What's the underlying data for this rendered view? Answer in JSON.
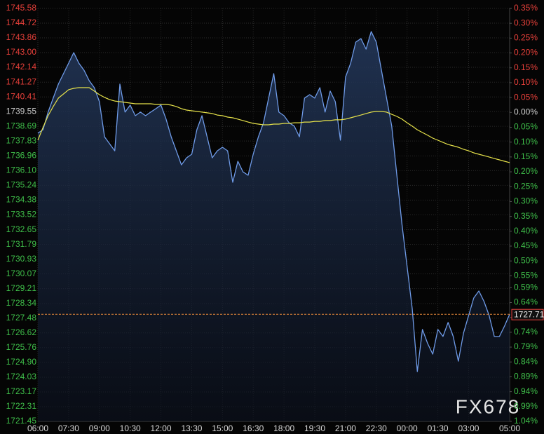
{
  "chart_data": {
    "type": "line",
    "watermark": "FX678",
    "categories": [
      "06:00",
      null,
      null,
      null,
      null,
      null,
      "07:30",
      null,
      null,
      null,
      null,
      null,
      "09:00",
      null,
      null,
      null,
      null,
      null,
      "10:30",
      null,
      null,
      null,
      null,
      null,
      "12:00",
      null,
      null,
      null,
      null,
      null,
      "13:30",
      null,
      null,
      null,
      null,
      null,
      "15:00",
      null,
      null,
      null,
      null,
      null,
      "16:30",
      null,
      null,
      null,
      null,
      null,
      "18:00",
      null,
      null,
      null,
      null,
      null,
      "19:30",
      null,
      null,
      null,
      null,
      null,
      "21:00",
      null,
      null,
      null,
      null,
      null,
      "22:30",
      null,
      null,
      null,
      null,
      null,
      "00:00",
      null,
      null,
      null,
      null,
      null,
      "01:30",
      null,
      null,
      null,
      null,
      null,
      "03:00",
      null,
      null,
      null,
      null,
      null,
      null,
      null,
      "05:00"
    ],
    "series": [
      {
        "color": "#6f9be8",
        "area": true,
        "values": [
          1738.29,
          1738.49,
          1739.52,
          1740.34,
          1741.16,
          1741.77,
          1742.38,
          1743.0,
          1742.38,
          1741.97,
          1741.36,
          1740.95,
          1740.13,
          1738.08,
          1737.67,
          1737.26,
          1741.16,
          1739.52,
          1739.93,
          1739.31,
          1739.52,
          1739.31,
          1739.52,
          1739.72,
          1739.93,
          1739.11,
          1738.08,
          1737.26,
          1736.44,
          1736.85,
          1737.06,
          1738.49,
          1739.31,
          1738.08,
          1736.85,
          1737.26,
          1737.47,
          1737.26,
          1735.42,
          1736.65,
          1736.03,
          1735.83,
          1737.06,
          1738.08,
          1738.9,
          1740.34,
          1741.77,
          1739.52,
          1739.31,
          1738.9,
          1738.7,
          1738.08,
          1740.34,
          1740.54,
          1740.34,
          1740.95,
          1739.52,
          1740.75,
          1740.13,
          1737.88,
          1741.57,
          1742.38,
          1743.61,
          1743.82,
          1743.2,
          1744.23,
          1743.61,
          1741.97,
          1740.34,
          1738.7,
          1735.83,
          1732.96,
          1730.5,
          1728.05,
          1724.36,
          1726.82,
          1726.0,
          1725.38,
          1726.82,
          1726.41,
          1727.23,
          1726.41,
          1724.97,
          1726.61,
          1727.64,
          1728.66,
          1729.07,
          1728.46,
          1727.64,
          1726.41,
          1726.41,
          1727.02,
          1727.71
        ]
      },
      {
        "color": "#e6e24a",
        "values": [
          1737.88,
          1738.62,
          1739.31,
          1739.85,
          1740.34,
          1740.58,
          1740.83,
          1740.91,
          1740.95,
          1740.95,
          1740.95,
          1740.75,
          1740.54,
          1740.38,
          1740.25,
          1740.17,
          1740.13,
          1740.09,
          1740.05,
          1740.01,
          1740.01,
          1740.01,
          1740.01,
          1739.97,
          1739.97,
          1739.97,
          1739.93,
          1739.85,
          1739.72,
          1739.64,
          1739.6,
          1739.56,
          1739.52,
          1739.48,
          1739.44,
          1739.35,
          1739.31,
          1739.23,
          1739.19,
          1739.11,
          1739.03,
          1738.94,
          1738.86,
          1738.82,
          1738.78,
          1738.78,
          1738.82,
          1738.82,
          1738.86,
          1738.86,
          1738.9,
          1738.9,
          1738.94,
          1738.94,
          1738.98,
          1738.98,
          1739.03,
          1739.03,
          1739.07,
          1739.07,
          1739.11,
          1739.19,
          1739.27,
          1739.35,
          1739.44,
          1739.52,
          1739.56,
          1739.56,
          1739.52,
          1739.39,
          1739.27,
          1739.11,
          1738.9,
          1738.7,
          1738.49,
          1738.33,
          1738.17,
          1738.0,
          1737.88,
          1737.75,
          1737.63,
          1737.55,
          1737.47,
          1737.35,
          1737.26,
          1737.14,
          1737.06,
          1736.98,
          1736.9,
          1736.81,
          1736.73,
          1736.65,
          1736.57
        ]
      }
    ],
    "ylim": [
      1721.45,
      1745.58
    ],
    "yticks": [
      1745.58,
      1744.72,
      1743.86,
      {
        "value": 1743.0,
        "label": "1743.00"
      },
      1742.14,
      1741.27,
      1740.41,
      1739.55,
      1738.69,
      1737.83,
      1736.96,
      {
        "value": 1736.1,
        "label": "1736.10"
      },
      1735.24,
      1734.38,
      1733.52,
      1732.65,
      1731.79,
      1730.93,
      1730.07,
      1729.21,
      1728.34,
      1727.48,
      1726.62,
      1725.76,
      {
        "value": 1724.9,
        "label": "1724.90"
      },
      1724.03,
      1723.17,
      1722.31,
      1721.45
    ],
    "y2lim": [
      -1.04,
      0.35
    ],
    "y2ticks": [
      {
        "value": 0.35,
        "label": "0.35%"
      },
      {
        "value": 0.3,
        "label": "0.30%"
      },
      {
        "value": 0.25,
        "label": "0.25%"
      },
      {
        "value": 0.2,
        "label": "0.20%"
      },
      {
        "value": 0.15,
        "label": "0.15%"
      },
      {
        "value": 0.1,
        "label": "0.10%"
      },
      {
        "value": 0.05,
        "label": "0.05%"
      },
      {
        "value": 0,
        "label": "0.00%"
      },
      {
        "value": -0.05,
        "label": "0.05%"
      },
      {
        "value": -0.1,
        "label": "0.10%"
      },
      {
        "value": -0.15,
        "label": "0.15%"
      },
      {
        "value": -0.2,
        "label": "0.20%"
      },
      {
        "value": -0.25,
        "label": "0.25%"
      },
      {
        "value": -0.3,
        "label": "0.30%"
      },
      {
        "value": -0.35,
        "label": "0.35%"
      },
      {
        "value": -0.4,
        "label": "0.40%"
      },
      {
        "value": -0.45,
        "label": "0.45%"
      },
      {
        "value": -0.5,
        "label": "0.50%"
      },
      {
        "value": -0.55,
        "label": "0.55%"
      },
      {
        "value": -0.59,
        "label": "0.59%"
      },
      {
        "value": -0.64,
        "label": "0.64%"
      },
      {
        "value": -0.69,
        "label": "0.69%"
      },
      {
        "value": -0.74,
        "label": "0.74%"
      },
      {
        "value": -0.79,
        "label": "0.79%"
      },
      {
        "value": -0.84,
        "label": "0.84%"
      },
      {
        "value": -0.89,
        "label": "0.89%"
      },
      {
        "value": -0.94,
        "label": "0.94%"
      },
      {
        "value": -0.99,
        "label": "0.99%"
      },
      {
        "value": -1.04,
        "label": "1.04%"
      }
    ],
    "up_color": "#e8403a",
    "down_color": "#3fbf4a",
    "flat_color": "#d0d0d0",
    "last_price": 1727.71,
    "grid": true
  }
}
